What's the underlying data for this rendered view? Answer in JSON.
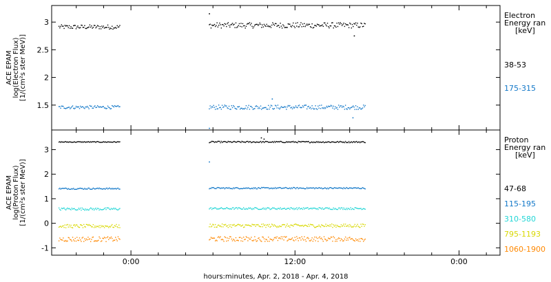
{
  "chart_data": [
    {
      "type": "scatter",
      "ylabel_lines": [
        "ACE EPAM",
        "log(Electron Flux)",
        "[1/(cm²s ster MeV)]"
      ],
      "ylim": [
        1.05,
        3.3
      ],
      "yticks": [
        1.5,
        2.0,
        2.5,
        3.0
      ],
      "legend_title_lines": [
        "Electron",
        "Energy ran",
        "[keV]"
      ],
      "legend_placement": "right",
      "series": [
        {
          "name": "38-53",
          "color": "#000000",
          "segments": [
            {
              "x0": -5.3,
              "x1": -0.85,
              "mean": 2.92,
              "noise": 0.04
            },
            {
              "x0": 5.7,
              "x1": 17.1,
              "mean": 2.95,
              "noise": 0.05
            }
          ],
          "outliers": [
            [
              5.7,
              3.16
            ],
            [
              16.3,
              2.76
            ]
          ]
        },
        {
          "name": "175-315",
          "color": "#1177c8",
          "segments": [
            {
              "x0": -5.3,
              "x1": -0.85,
              "mean": 1.47,
              "noise": 0.03
            },
            {
              "x0": 5.7,
              "x1": 17.1,
              "mean": 1.47,
              "noise": 0.04
            }
          ],
          "outliers": [
            [
              5.7,
              1.09
            ],
            [
              10.3,
              1.62
            ],
            [
              16.2,
              1.28
            ]
          ]
        }
      ]
    },
    {
      "type": "scatter",
      "ylabel_lines": [
        "ACE EPAM",
        "log(Proton Flux)",
        "[1/(cm²s ster MeV)]"
      ],
      "ylim": [
        -1.3,
        3.8
      ],
      "yticks": [
        -1,
        0,
        1,
        2,
        3
      ],
      "legend_title_lines": [
        "Proton",
        "Energy ran",
        "[keV]"
      ],
      "legend_placement": "right",
      "series": [
        {
          "name": "47-68",
          "color": "#000000",
          "segments": [
            {
              "x0": -5.3,
              "x1": -0.85,
              "mean": 3.33,
              "noise": 0.02
            },
            {
              "x0": 5.7,
              "x1": 17.1,
              "mean": 3.33,
              "noise": 0.03
            }
          ],
          "outliers": [
            [
              9.5,
              3.5
            ],
            [
              9.7,
              3.45
            ]
          ]
        },
        {
          "name": "115-195",
          "color": "#1177c8",
          "segments": [
            {
              "x0": -5.3,
              "x1": -0.85,
              "mean": 1.43,
              "noise": 0.03
            },
            {
              "x0": 5.7,
              "x1": 17.1,
              "mean": 1.45,
              "noise": 0.03
            }
          ],
          "outliers": [
            [
              5.7,
              2.52
            ]
          ]
        },
        {
          "name": "310-580",
          "color": "#22d6d6",
          "segments": [
            {
              "x0": -5.3,
              "x1": -0.85,
              "mean": 0.6,
              "noise": 0.05
            },
            {
              "x0": 5.7,
              "x1": 17.1,
              "mean": 0.62,
              "noise": 0.04
            }
          ],
          "outliers": []
        },
        {
          "name": "795-1193",
          "color": "#d8d800",
          "segments": [
            {
              "x0": -5.3,
              "x1": -0.85,
              "mean": -0.1,
              "noise": 0.07
            },
            {
              "x0": 5.7,
              "x1": 17.1,
              "mean": -0.08,
              "noise": 0.07
            }
          ],
          "outliers": []
        },
        {
          "name": "1060-1900",
          "color": "#ff8800",
          "segments": [
            {
              "x0": -5.3,
              "x1": -0.85,
              "mean": -0.63,
              "noise": 0.1
            },
            {
              "x0": 5.7,
              "x1": 17.1,
              "mean": -0.62,
              "noise": 0.1
            }
          ],
          "outliers": []
        }
      ]
    }
  ],
  "x_axis": {
    "xlim": [
      -5.8,
      27
    ],
    "ticks": [
      {
        "x": 0,
        "label": "0:00"
      },
      {
        "x": 12,
        "label": "12:00"
      },
      {
        "x": 24,
        "label": "0:00"
      }
    ],
    "minor_step": 2,
    "label": "hours:minutes, Apr.  2, 2018 - Apr.  4, 2018"
  },
  "grid": false
}
